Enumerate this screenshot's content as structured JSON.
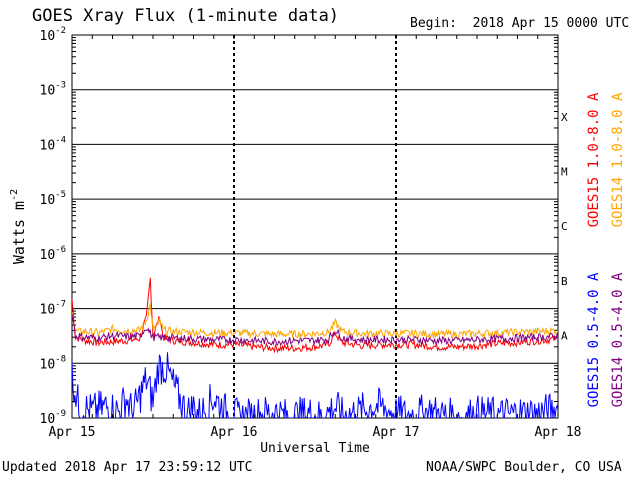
{
  "header": {
    "title": "GOES Xray Flux (1-minute data)",
    "begin_label": "Begin:",
    "begin_value": "2018 Apr 15 0000 UTC"
  },
  "footer": {
    "updated": "Updated 2018 Apr 17 23:59:12 UTC",
    "credit": "NOAA/SWPC Boulder, CO USA"
  },
  "chart_data": {
    "type": "line",
    "xlabel": "Universal Time",
    "ylabel_text": "Watts m",
    "ylabel_exponent": "-2",
    "y_scale": "log",
    "ylim": [
      1e-09,
      0.01
    ],
    "xlim": [
      0,
      72
    ],
    "x_unit": "hours since 2018 Apr 15 0000 UTC",
    "x_ticks": [
      {
        "label": "Apr 15",
        "x": 0
      },
      {
        "label": "Apr 16",
        "x": 24
      },
      {
        "label": "Apr 17",
        "x": 48
      },
      {
        "label": "Apr 18",
        "x": 72
      }
    ],
    "y_ticks": [
      {
        "base": "10",
        "exp": "-9",
        "value": 1e-09
      },
      {
        "base": "10",
        "exp": "-8",
        "value": 1e-08
      },
      {
        "base": "10",
        "exp": "-7",
        "value": 1e-07
      },
      {
        "base": "10",
        "exp": "-6",
        "value": 1e-06
      },
      {
        "base": "10",
        "exp": "-5",
        "value": 1e-05
      },
      {
        "base": "10",
        "exp": "-4",
        "value": 0.0001
      },
      {
        "base": "10",
        "exp": "-3",
        "value": 0.001
      },
      {
        "base": "10",
        "exp": "-2",
        "value": 0.01
      }
    ],
    "flare_classes": [
      {
        "label": "A",
        "value": 3.2e-08
      },
      {
        "label": "B",
        "value": 3.2e-07
      },
      {
        "label": "C",
        "value": 3.2e-06
      },
      {
        "label": "M",
        "value": 3.2e-05
      },
      {
        "label": "X",
        "value": 0.00032
      }
    ],
    "grid": "horizontal lines at each decade above 1e-8; dashed vertical lines at day boundaries",
    "series": [
      {
        "name": "GOES15 1.0-8.0 A",
        "color": "#ff0000",
        "label_column": "right",
        "points": [
          [
            0,
            1.5e-07
          ],
          [
            0.5,
            3e-08
          ],
          [
            2,
            2.6e-08
          ],
          [
            4,
            2.4e-08
          ],
          [
            6,
            2.5e-08
          ],
          [
            8,
            2.6e-08
          ],
          [
            10,
            2.8e-08
          ],
          [
            11,
            6.5e-08
          ],
          [
            11.6,
            3.6e-07
          ],
          [
            12,
            3.2e-08
          ],
          [
            13,
            7e-08
          ],
          [
            13.5,
            3e-08
          ],
          [
            15,
            2.6e-08
          ],
          [
            18,
            2.4e-08
          ],
          [
            21,
            2.2e-08
          ],
          [
            24,
            2.2e-08
          ],
          [
            27,
            2e-08
          ],
          [
            30,
            1.9e-08
          ],
          [
            33,
            1.9e-08
          ],
          [
            36,
            2e-08
          ],
          [
            38,
            2.2e-08
          ],
          [
            39,
            3.5e-08
          ],
          [
            40,
            2.4e-08
          ],
          [
            43,
            2.1e-08
          ],
          [
            46,
            2.2e-08
          ],
          [
            48,
            2.2e-08
          ],
          [
            51,
            2.2e-08
          ],
          [
            54,
            2e-08
          ],
          [
            57,
            2e-08
          ],
          [
            60,
            2.1e-08
          ],
          [
            63,
            2.3e-08
          ],
          [
            66,
            2.4e-08
          ],
          [
            69,
            2.6e-08
          ],
          [
            72,
            2.8e-08
          ]
        ]
      },
      {
        "name": "GOES14 1.0-8.0 A",
        "color": "#ffa500",
        "label_column": "right",
        "points": [
          [
            0,
            1e-07
          ],
          [
            0.5,
            3.8e-08
          ],
          [
            2,
            3.8e-08
          ],
          [
            4,
            3.6e-08
          ],
          [
            6,
            4.2e-08
          ],
          [
            8,
            4e-08
          ],
          [
            10,
            4e-08
          ],
          [
            11,
            6e-08
          ],
          [
            11.6,
            1.2e-07
          ],
          [
            12,
            4e-08
          ],
          [
            13,
            6e-08
          ],
          [
            13.5,
            4.1e-08
          ],
          [
            15,
            3.8e-08
          ],
          [
            18,
            3.7e-08
          ],
          [
            21,
            3.6e-08
          ],
          [
            24,
            3.6e-08
          ],
          [
            27,
            3.5e-08
          ],
          [
            30,
            3.4e-08
          ],
          [
            33,
            3.4e-08
          ],
          [
            36,
            3.5e-08
          ],
          [
            38,
            3.7e-08
          ],
          [
            39,
            5.5e-08
          ],
          [
            40,
            3.8e-08
          ],
          [
            43,
            3.5e-08
          ],
          [
            46,
            3.5e-08
          ],
          [
            48,
            3.5e-08
          ],
          [
            51,
            3.5e-08
          ],
          [
            54,
            3.4e-08
          ],
          [
            57,
            3.4e-08
          ],
          [
            60,
            3.5e-08
          ],
          [
            63,
            3.6e-08
          ],
          [
            66,
            3.7e-08
          ],
          [
            69,
            3.8e-08
          ],
          [
            72,
            4e-08
          ]
        ]
      },
      {
        "name": "GOES15 0.5-4.0 A",
        "color": "#0000ff",
        "label_column": "left",
        "points": [
          [
            0,
            6e-09
          ],
          [
            1,
            1.6e-09
          ],
          [
            3,
            1.3e-09
          ],
          [
            5,
            1.6e-09
          ],
          [
            7,
            1.3e-09
          ],
          [
            8,
            2.3e-09
          ],
          [
            9,
            1.2e-09
          ],
          [
            11,
            5e-09
          ],
          [
            12,
            2e-09
          ],
          [
            12.8,
            9e-09
          ],
          [
            14,
            8e-09
          ],
          [
            15,
            4e-09
          ],
          [
            16,
            2.2e-09
          ],
          [
            17,
            1.2e-09
          ],
          [
            18,
            1.6e-09
          ],
          [
            19,
            1.1e-09
          ],
          [
            21,
            2.4e-09
          ],
          [
            23,
            1.2e-09
          ],
          [
            25,
            1e-09
          ],
          [
            27,
            1.1e-09
          ],
          [
            30,
            1.3e-09
          ],
          [
            32,
            1e-09
          ],
          [
            35,
            1.2e-09
          ],
          [
            37,
            1e-09
          ],
          [
            39,
            1.6e-09
          ],
          [
            40,
            1.1e-09
          ],
          [
            42,
            1.2e-09
          ],
          [
            45,
            1.7e-09
          ],
          [
            48,
            1.2e-09
          ],
          [
            50,
            1.1e-09
          ],
          [
            53,
            1.3e-09
          ],
          [
            55,
            1.1e-09
          ],
          [
            58,
            1e-09
          ],
          [
            60,
            1.2e-09
          ],
          [
            63,
            1.1e-09
          ],
          [
            66,
            1.2e-09
          ],
          [
            69,
            1.2e-09
          ],
          [
            72,
            1.4e-09
          ]
        ]
      },
      {
        "name": "GOES14 0.5-4.0 A",
        "color": "#800080",
        "label_column": "right",
        "points": [
          [
            0,
            9e-08
          ],
          [
            0.5,
            3.2e-08
          ],
          [
            2,
            3e-08
          ],
          [
            4,
            2.9e-08
          ],
          [
            6,
            3.2e-08
          ],
          [
            8,
            3.1e-08
          ],
          [
            10,
            3.1e-08
          ],
          [
            11,
            4.6e-08
          ],
          [
            12,
            3e-08
          ],
          [
            15,
            2.9e-08
          ],
          [
            18,
            2.8e-08
          ],
          [
            21,
            2.7e-08
          ],
          [
            24,
            2.7e-08
          ],
          [
            27,
            2.6e-08
          ],
          [
            30,
            2.5e-08
          ],
          [
            33,
            2.6e-08
          ],
          [
            36,
            2.6e-08
          ],
          [
            38,
            2.8e-08
          ],
          [
            39,
            4e-08
          ],
          [
            40,
            2.9e-08
          ],
          [
            43,
            2.7e-08
          ],
          [
            46,
            2.7e-08
          ],
          [
            48,
            2.7e-08
          ],
          [
            51,
            2.7e-08
          ],
          [
            54,
            2.6e-08
          ],
          [
            57,
            2.6e-08
          ],
          [
            60,
            2.7e-08
          ],
          [
            63,
            2.8e-08
          ],
          [
            66,
            2.9e-08
          ],
          [
            69,
            3e-08
          ],
          [
            72,
            3.1e-08
          ]
        ]
      }
    ]
  }
}
